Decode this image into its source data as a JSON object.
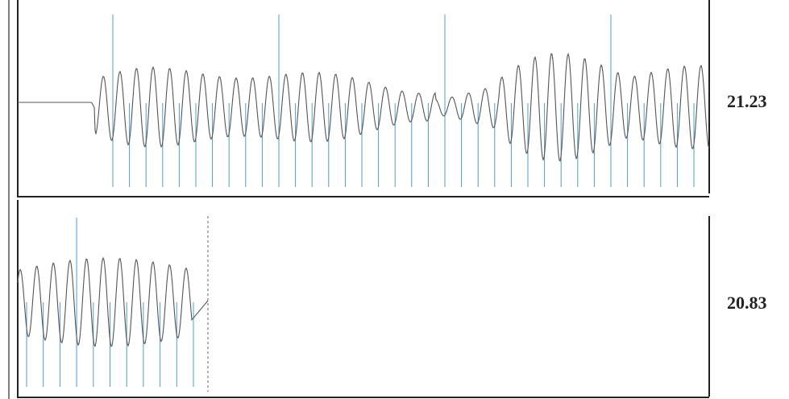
{
  "panels": [
    {
      "value_label": "21.23"
    },
    {
      "value_label": "20.83"
    }
  ]
}
